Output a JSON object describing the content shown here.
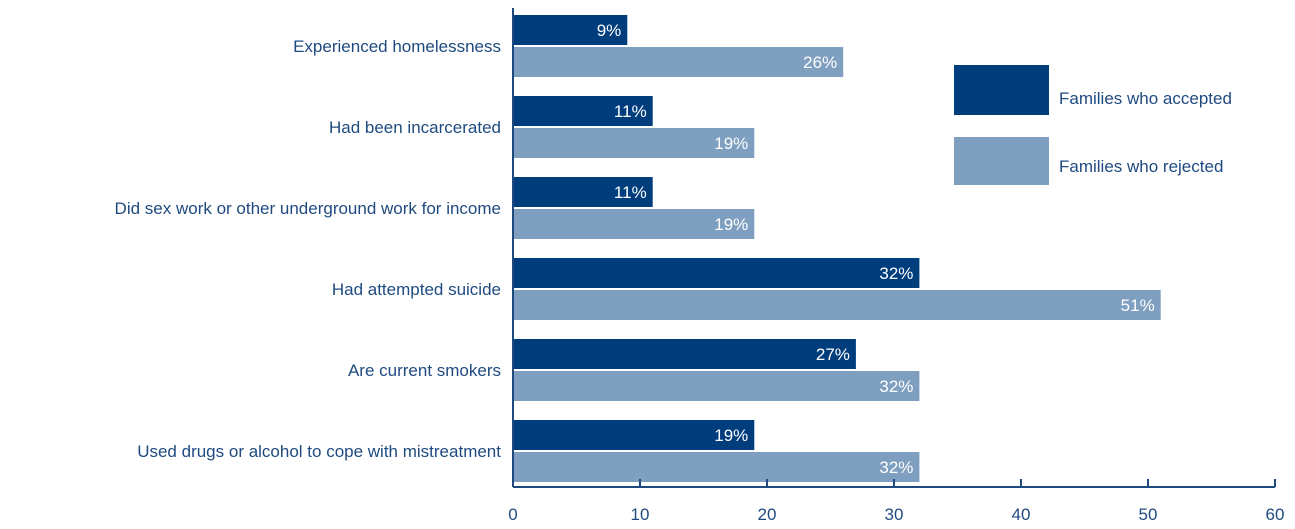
{
  "chart_data": {
    "type": "bar",
    "orientation": "horizontal",
    "categories": [
      "Experienced homelessness",
      "Had been incarcerated",
      "Did sex work or other underground work for income",
      "Had attempted suicide",
      "Are current smokers",
      "Used drugs or alcohol to cope with mistreatment"
    ],
    "series": [
      {
        "name": "Families who accepted",
        "color": "#003d7d",
        "values": [
          9,
          11,
          11,
          32,
          27,
          19
        ]
      },
      {
        "name": "Families who rejected",
        "color": "#7f9fc0",
        "values": [
          26,
          19,
          19,
          51,
          32,
          32
        ]
      }
    ],
    "value_suffix": "%",
    "xlim": [
      0,
      60
    ],
    "xticks": [
      0,
      10,
      20,
      30,
      40,
      50,
      60
    ],
    "grid": false,
    "legend_position": "top-right",
    "title": "",
    "xlabel": "",
    "ylabel": ""
  }
}
